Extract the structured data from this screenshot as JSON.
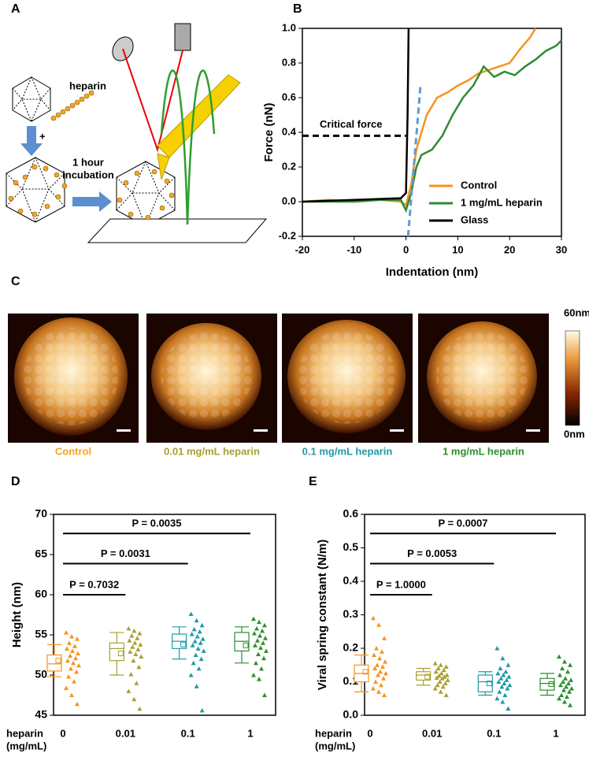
{
  "panel_labels": [
    "A",
    "B",
    "C",
    "D",
    "E"
  ],
  "panel_a": {
    "heparin": "heparin",
    "plus": "+",
    "incubation": [
      "1 hour",
      "incubation"
    ]
  },
  "panel_c": {
    "captions": [
      "Control",
      "0.01 mg/mL heparin",
      "0.1 mg/mL heparin",
      "1 mg/mL heparin"
    ],
    "caption_colors": [
      "#f7a21b",
      "#a8a032",
      "#1e9ba5",
      "#2e8f2e"
    ],
    "colorbar_max": "60nm",
    "colorbar_min": "0nm"
  },
  "chart_data": [
    {
      "type": "line",
      "x_label": "Indentation (nm)",
      "y_label": "Force (nN)",
      "xlim": [
        -20,
        30
      ],
      "ylim": [
        -0.2,
        1.0
      ],
      "xticks": [
        -20,
        -10,
        0,
        10,
        20,
        30
      ],
      "yticks": [
        -0.2,
        {
          "value": 0,
          "label": "0.0"
        },
        0.2,
        0.4,
        0.6,
        0.8,
        {
          "value": 1,
          "label": "1.0"
        }
      ],
      "legend": "lower right",
      "annotation": "Critical force",
      "critical_force": 0.38,
      "fit_line": {
        "color": "#5b9bd5",
        "x": [
          0.4,
          2.8
        ],
        "values": [
          -0.2,
          0.67
        ]
      },
      "series": [
        {
          "name": "Control",
          "color": "#f7931e",
          "x": [
            -20,
            -15,
            -10,
            -5,
            -1,
            0,
            1,
            2,
            3,
            4,
            5,
            6,
            8,
            10,
            12,
            14,
            16,
            18,
            20,
            22,
            24,
            25
          ],
          "values": [
            0,
            0.01,
            0,
            0.01,
            0,
            -0.02,
            0.1,
            0.3,
            0.4,
            0.5,
            0.55,
            0.6,
            0.63,
            0.67,
            0.7,
            0.74,
            0.76,
            0.78,
            0.8,
            0.88,
            0.95,
            1.0
          ]
        },
        {
          "name": "1 mg/mL heparin",
          "color": "#2e8b2e",
          "x": [
            -20,
            -15,
            -10,
            -5,
            -1,
            0,
            1,
            2,
            3,
            5,
            7,
            9,
            11,
            13,
            15,
            17,
            19,
            21,
            23,
            25,
            27,
            29,
            30
          ],
          "values": [
            0,
            0,
            0,
            0.01,
            0.01,
            -0.05,
            0.05,
            0.2,
            0.27,
            0.3,
            0.38,
            0.5,
            0.6,
            0.67,
            0.78,
            0.72,
            0.75,
            0.73,
            0.78,
            0.82,
            0.87,
            0.9,
            0.93
          ]
        },
        {
          "name": "Glass",
          "color": "#000000",
          "x": [
            -20,
            -10,
            -1,
            0,
            0.3,
            0.5
          ],
          "values": [
            0,
            0.01,
            0.02,
            0.05,
            0.5,
            1.0
          ]
        }
      ]
    },
    {
      "type": "box",
      "y_label": "Height (nm)",
      "x_label_lines": [
        "heparin",
        "(mg/mL)"
      ],
      "categories": [
        "0",
        "0.01",
        "0.1",
        "1"
      ],
      "ylim": [
        45,
        70
      ],
      "yticks": [
        45,
        50,
        55,
        60,
        65,
        70
      ],
      "p_values": [
        "P = 0.7032",
        "P = 0.0031",
        "P = 0.0035"
      ],
      "groups": [
        {
          "color": "#f7931e",
          "whisker_low": 49.8,
          "q1": 50.5,
          "median": 51.4,
          "q3": 52.5,
          "whisker_high": 53.8,
          "mean": 51.8,
          "points": [
            55.3,
            54.8,
            54.5,
            54,
            53.6,
            53.3,
            53,
            52.7,
            52.4,
            52.1,
            51.8,
            51.5,
            51.2,
            50.8,
            50.4,
            49.8,
            49.2,
            48.4,
            47.5,
            46.4
          ]
        },
        {
          "color": "#a8a032",
          "whisker_low": 50,
          "q1": 51.8,
          "median": 53.3,
          "q3": 54,
          "whisker_high": 55.3,
          "mean": 52.7,
          "points": [
            55.8,
            55.5,
            55.2,
            54.9,
            54.6,
            54.3,
            54,
            53.8,
            53.5,
            53.2,
            52.9,
            52.6,
            52.3,
            51.8,
            51,
            50.1,
            49,
            48,
            47,
            45.8
          ]
        },
        {
          "color": "#1e9ba5",
          "whisker_low": 52,
          "q1": 53.3,
          "median": 54.2,
          "q3": 55.1,
          "whisker_high": 56,
          "mean": 53.8,
          "points": [
            57.6,
            56.8,
            56.2,
            55.7,
            55.4,
            55.1,
            54.8,
            54.5,
            54.2,
            54,
            53.7,
            53.3,
            53,
            52.5,
            52,
            51.5,
            50.8,
            50,
            48.6,
            45.6
          ]
        },
        {
          "color": "#2e8f2e",
          "whisker_low": 51.5,
          "q1": 53,
          "median": 54.2,
          "q3": 55.3,
          "whisker_high": 56,
          "mean": 53.7,
          "points": [
            57,
            56.6,
            56.2,
            55.8,
            55.5,
            55.2,
            54.9,
            54.6,
            54.3,
            54,
            53.7,
            53.4,
            53,
            52.6,
            52.1,
            51.5,
            50.8,
            50,
            49.5,
            47.5
          ]
        }
      ]
    },
    {
      "type": "box",
      "y_label": "Viral spring constant (N/m)",
      "x_label_lines": [
        "heparin",
        "(mg/mL)"
      ],
      "categories": [
        "0",
        "0.01",
        "0.1",
        "1"
      ],
      "ylim": [
        0,
        0.6
      ],
      "yticks": [
        {
          "value": 0,
          "label": "0.0"
        },
        0.1,
        0.2,
        0.3,
        0.4,
        0.5,
        0.6
      ],
      "p_values": [
        "P = 1.0000",
        "P = 0.0053",
        "P = 0.0007"
      ],
      "groups": [
        {
          "color": "#f7931e",
          "whisker_low": 0.07,
          "q1": 0.1,
          "median": 0.125,
          "q3": 0.15,
          "whisker_high": 0.18,
          "mean": 0.13,
          "points": [
            0.29,
            0.27,
            0.23,
            0.2,
            0.19,
            0.18,
            0.17,
            0.16,
            0.15,
            0.145,
            0.14,
            0.13,
            0.125,
            0.12,
            0.11,
            0.1,
            0.09,
            0.08,
            0.07,
            0.06
          ]
        },
        {
          "color": "#a8a032",
          "whisker_low": 0.09,
          "q1": 0.105,
          "median": 0.12,
          "q3": 0.13,
          "whisker_high": 0.14,
          "mean": 0.115,
          "points": [
            0.155,
            0.15,
            0.145,
            0.14,
            0.135,
            0.13,
            0.125,
            0.12,
            0.118,
            0.115,
            0.112,
            0.11,
            0.105,
            0.1,
            0.095,
            0.09,
            0.085,
            0.08,
            0.07,
            0.06
          ]
        },
        {
          "color": "#1e9ba5",
          "whisker_low": 0.06,
          "q1": 0.07,
          "median": 0.1,
          "q3": 0.12,
          "whisker_high": 0.13,
          "mean": 0.095,
          "points": [
            0.2,
            0.17,
            0.15,
            0.14,
            0.13,
            0.125,
            0.12,
            0.115,
            0.11,
            0.105,
            0.1,
            0.095,
            0.09,
            0.085,
            0.08,
            0.07,
            0.06,
            0.05,
            0.04,
            0.02
          ]
        },
        {
          "color": "#2e8f2e",
          "whisker_low": 0.06,
          "q1": 0.075,
          "median": 0.095,
          "q3": 0.11,
          "whisker_high": 0.125,
          "mean": 0.093,
          "points": [
            0.175,
            0.16,
            0.15,
            0.14,
            0.13,
            0.12,
            0.11,
            0.105,
            0.1,
            0.095,
            0.09,
            0.085,
            0.08,
            0.075,
            0.07,
            0.06,
            0.055,
            0.05,
            0.04,
            0.03
          ]
        }
      ]
    }
  ]
}
